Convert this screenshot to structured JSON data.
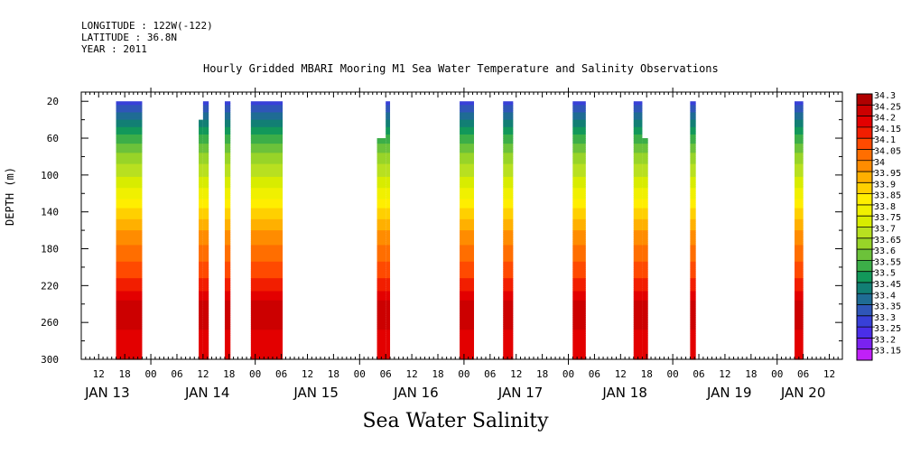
{
  "header": {
    "longitude": "LONGITUDE : 122W(-122)",
    "latitude": "LATITUDE : 36.8N",
    "year": "YEAR : 2011"
  },
  "chart_data": {
    "type": "heatmap",
    "title": "Hourly Gridded MBARI Mooring M1 Sea Water Temperature and Salinity Observations",
    "bottom_title": "Sea Water Salinity",
    "ylabel": "DEPTH (m)",
    "xlabel": "",
    "x_unit": "hours since JAN 13 00",
    "xlim": [
      8,
      183
    ],
    "ylim": [
      300,
      10
    ],
    "y_reversed": true,
    "y_ticks": [
      20,
      60,
      100,
      140,
      180,
      220,
      260,
      300
    ],
    "x_tick_labels": [
      {
        "t": 12,
        "label": "12"
      },
      {
        "t": 18,
        "label": "18"
      },
      {
        "t": 24,
        "label": "00"
      },
      {
        "t": 30,
        "label": "06"
      },
      {
        "t": 36,
        "label": "12"
      },
      {
        "t": 42,
        "label": "18"
      },
      {
        "t": 48,
        "label": "00"
      },
      {
        "t": 54,
        "label": "06"
      },
      {
        "t": 60,
        "label": "12"
      },
      {
        "t": 66,
        "label": "18"
      },
      {
        "t": 72,
        "label": "00"
      },
      {
        "t": 78,
        "label": "06"
      },
      {
        "t": 84,
        "label": "12"
      },
      {
        "t": 90,
        "label": "18"
      },
      {
        "t": 96,
        "label": "00"
      },
      {
        "t": 102,
        "label": "06"
      },
      {
        "t": 108,
        "label": "12"
      },
      {
        "t": 114,
        "label": "18"
      },
      {
        "t": 120,
        "label": "00"
      },
      {
        "t": 126,
        "label": "06"
      },
      {
        "t": 132,
        "label": "12"
      },
      {
        "t": 138,
        "label": "18"
      },
      {
        "t": 144,
        "label": "00"
      },
      {
        "t": 150,
        "label": "06"
      },
      {
        "t": 156,
        "label": "12"
      },
      {
        "t": 162,
        "label": "18"
      },
      {
        "t": 168,
        "label": "00"
      },
      {
        "t": 174,
        "label": "06"
      },
      {
        "t": 180,
        "label": "12"
      }
    ],
    "day_labels": [
      {
        "t": 14,
        "label": "JAN 13"
      },
      {
        "t": 37,
        "label": "JAN 14"
      },
      {
        "t": 62,
        "label": "JAN 15"
      },
      {
        "t": 85,
        "label": "JAN 16"
      },
      {
        "t": 109,
        "label": "JAN 17"
      },
      {
        "t": 133,
        "label": "JAN 18"
      },
      {
        "t": 157,
        "label": "JAN 19"
      },
      {
        "t": 174,
        "label": "JAN 20"
      }
    ],
    "series": [
      {
        "t0": 16,
        "t1": 22,
        "top": 20
      },
      {
        "t0": 35,
        "t1": 36,
        "top": 40
      },
      {
        "t0": 36,
        "t1": 37.3,
        "top": 20
      },
      {
        "t0": 41,
        "t1": 42.3,
        "top": 20
      },
      {
        "t0": 47,
        "t1": 54.3,
        "top": 20
      },
      {
        "t0": 76,
        "t1": 78,
        "top": 60
      },
      {
        "t0": 78,
        "t1": 79,
        "top": 20
      },
      {
        "t0": 95,
        "t1": 98.3,
        "top": 20
      },
      {
        "t0": 105,
        "t1": 107.3,
        "top": 20
      },
      {
        "t0": 121,
        "t1": 124,
        "top": 20
      },
      {
        "t0": 135,
        "t1": 137,
        "top": 20
      },
      {
        "t0": 137,
        "t1": 138.3,
        "top": 60
      },
      {
        "t0": 148,
        "t1": 149.3,
        "top": 20
      },
      {
        "t0": 172,
        "t1": 174,
        "top": 20
      }
    ],
    "profile": [
      {
        "depth": 20,
        "value": 33.32
      },
      {
        "depth": 40,
        "value": 33.45
      },
      {
        "depth": 60,
        "value": 33.57
      },
      {
        "depth": 80,
        "value": 33.67
      },
      {
        "depth": 100,
        "value": 33.74
      },
      {
        "depth": 120,
        "value": 33.82
      },
      {
        "depth": 140,
        "value": 33.92
      },
      {
        "depth": 160,
        "value": 34.0
      },
      {
        "depth": 180,
        "value": 34.06
      },
      {
        "depth": 200,
        "value": 34.12
      },
      {
        "depth": 220,
        "value": 34.17
      },
      {
        "depth": 240,
        "value": 34.27
      },
      {
        "depth": 260,
        "value": 34.27
      },
      {
        "depth": 280,
        "value": 34.22
      },
      {
        "depth": 300,
        "value": 34.2
      }
    ],
    "colorbar": {
      "levels": [
        "34.3",
        "34.25",
        "34.2",
        "34.15",
        "34.1",
        "34.05",
        "34",
        "33.95",
        "33.9",
        "33.85",
        "33.8",
        "33.75",
        "33.7",
        "33.65",
        "33.6",
        "33.55",
        "33.5",
        "33.45",
        "33.4",
        "33.35",
        "33.3",
        "33.25",
        "33.2",
        "33.15"
      ],
      "colors": [
        "#b00000",
        "#cc0000",
        "#e30000",
        "#f21e00",
        "#ff4a00",
        "#ff6e00",
        "#ff8c00",
        "#ffb000",
        "#ffd000",
        "#ffee00",
        "#f0f000",
        "#d8ec00",
        "#b8e020",
        "#98d428",
        "#6cc23a",
        "#3cae48",
        "#12985a",
        "#127f74",
        "#1f6c94",
        "#2f56b8",
        "#3840d8",
        "#4a2ee8",
        "#7a22f0",
        "#c020f8"
      ]
    }
  }
}
